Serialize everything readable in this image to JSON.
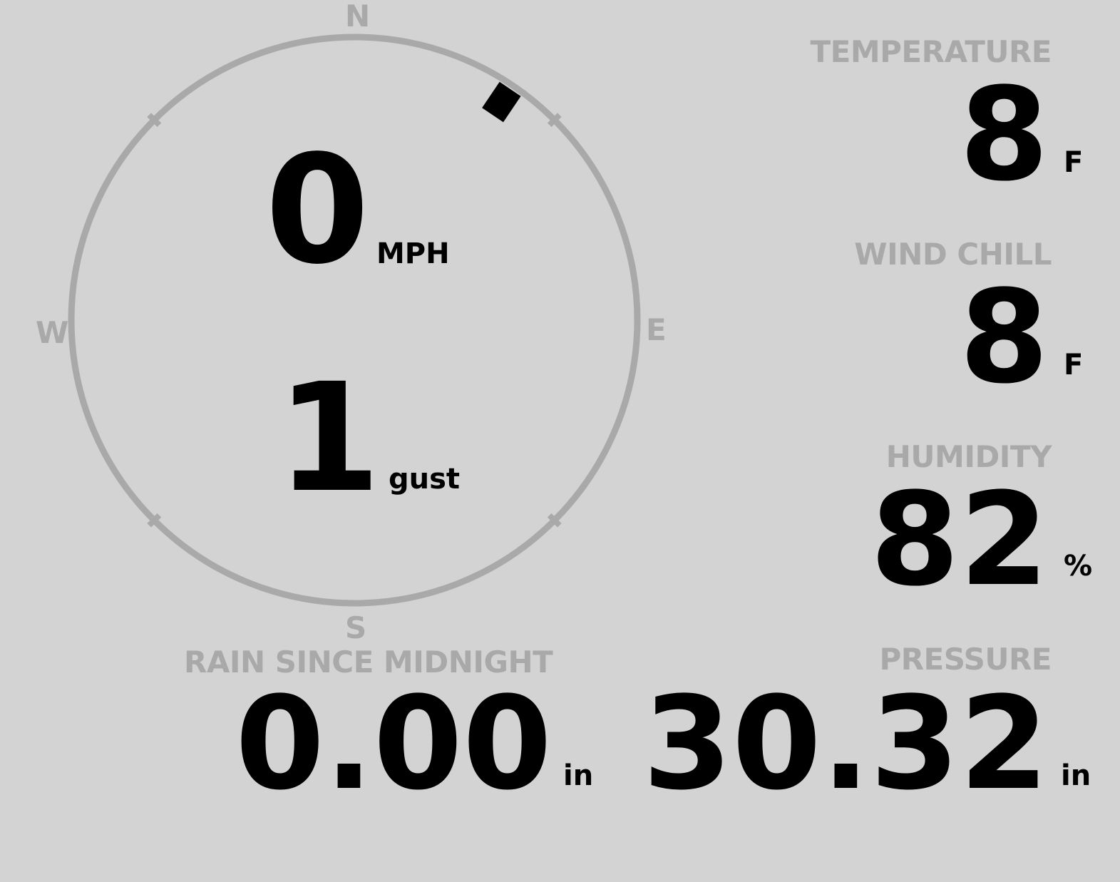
{
  "compass": {
    "cardinals": {
      "n": "N",
      "e": "E",
      "s": "S",
      "w": "W"
    },
    "wind_direction_deg": 34
  },
  "wind": {
    "speed": "0",
    "speed_unit": "MPH",
    "gust": "1",
    "gust_unit": "gust"
  },
  "temperature": {
    "label": "TEMPERATURE",
    "value": "8",
    "unit": "F"
  },
  "wind_chill": {
    "label": "WIND CHILL",
    "value": "8",
    "unit": "F"
  },
  "humidity": {
    "label": "HUMIDITY",
    "value": "82",
    "unit": "%"
  },
  "rain": {
    "label": "RAIN SINCE MIDNIGHT",
    "value": "0.00",
    "unit": "in"
  },
  "pressure": {
    "label": "PRESSURE",
    "value": "30.32",
    "unit": "in"
  },
  "colors": {
    "background": "#d3d3d3",
    "muted": "#a9a9a9",
    "value": "#000000"
  }
}
